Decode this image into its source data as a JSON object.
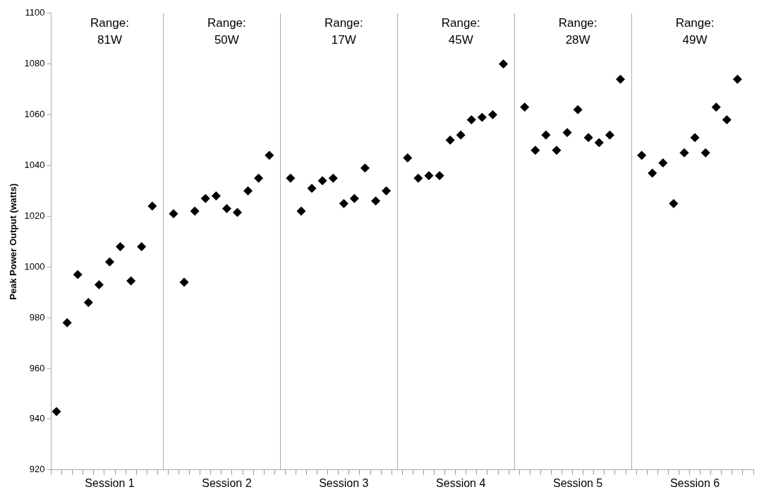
{
  "chart_data": {
    "type": "scatter",
    "ylabel": "Peak Power Output (watts)",
    "categories": [
      null,
      null,
      null,
      null,
      null,
      "Session 1",
      null,
      null,
      null,
      null,
      null,
      null,
      null,
      null,
      null,
      null,
      "Session 2",
      null,
      null,
      null,
      null,
      null,
      null,
      null,
      null,
      null,
      null,
      "Session 3",
      null,
      null,
      null,
      null,
      null,
      null,
      null,
      null,
      null,
      null,
      "Session 4",
      null,
      null,
      null,
      null,
      null,
      null,
      null,
      null,
      null,
      null,
      "Session 5",
      null,
      null,
      null,
      null,
      null,
      null,
      null,
      null,
      null,
      null,
      "Session 6",
      null,
      null,
      null,
      null,
      null
    ],
    "series": [
      {
        "color": "#000000",
        "values": [
          943,
          978,
          997,
          986,
          993,
          1002,
          1008,
          994.5,
          1008,
          1024,
          null,
          1021,
          994,
          1022,
          1027,
          1028,
          1023,
          1021.5,
          1030,
          1035,
          1044,
          null,
          1035,
          1022,
          1031,
          1034,
          1035,
          1025,
          1027,
          1039,
          1026,
          1030,
          null,
          1043,
          1035,
          1036,
          1036,
          1050,
          1052,
          1058,
          1059,
          1060,
          1080,
          null,
          1063,
          1046,
          1052,
          1046,
          1053,
          1062,
          1051,
          1049,
          1052,
          1074,
          null,
          1044,
          1037,
          1041,
          1025,
          1045,
          1051,
          1045,
          1063,
          1058,
          1074,
          null
        ]
      }
    ],
    "marker": "diamond",
    "grid": false,
    "legend": false,
    "ylim": [
      920,
      1100
    ],
    "yticks": [
      920,
      940,
      960,
      980,
      1000,
      1020,
      1040,
      1060,
      1080,
      1100
    ],
    "annotations": [
      "Range:\n81W",
      "Range:\n50W",
      "Range:\n17W",
      "Range:\n45W",
      "Range:\n28W",
      "Range:\n49W"
    ]
  }
}
